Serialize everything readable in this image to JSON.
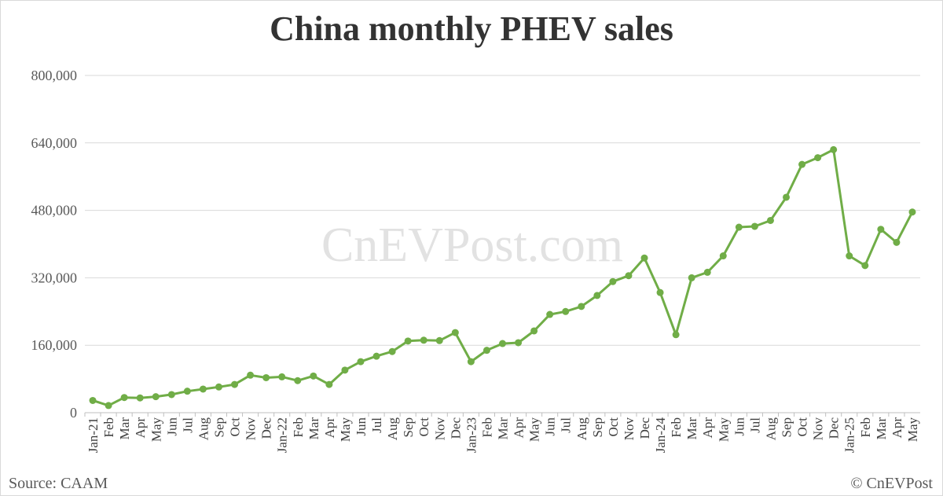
{
  "header": {
    "source": "Source: CAAM",
    "copyright": "© CnEVPost",
    "watermark": "CnEVPost.com"
  },
  "colors": {
    "line": "#70AD47",
    "grid": "#d9d9d9",
    "axis": "#bfbfbf",
    "text": "#595959"
  },
  "chart_data": {
    "type": "line",
    "title": "China monthly PHEV sales",
    "xlabel": "",
    "ylabel": "",
    "ylim": [
      0,
      800000
    ],
    "yticks": [
      "0",
      "160,000",
      "320,000",
      "480,000",
      "640,000",
      "800,000"
    ],
    "ytick_values": [
      0,
      160000,
      320000,
      480000,
      640000,
      800000
    ],
    "grid": true,
    "legend": "none",
    "categories": [
      "Jan-21",
      "Feb",
      "Mar",
      "Apr",
      "May",
      "Jun",
      "Jul",
      "Aug",
      "Sep",
      "Oct",
      "Nov",
      "Dec",
      "Jan-22",
      "Feb",
      "Mar",
      "Apr",
      "May",
      "Jun",
      "Jul",
      "Aug",
      "Sep",
      "Oct",
      "Nov",
      "Dec",
      "Jan-23",
      "Feb",
      "Mar",
      "Apr",
      "May",
      "Jun",
      "Jul",
      "Aug",
      "Sep",
      "Oct",
      "Nov",
      "Dec",
      "Jan-24",
      "Feb",
      "Mar",
      "Apr",
      "May",
      "Jun",
      "Jul",
      "Aug",
      "Sep",
      "Oct",
      "Nov",
      "Dec",
      "Jan-25",
      "Feb",
      "Mar",
      "Apr",
      "May"
    ],
    "series": [
      {
        "values": [
          29000,
          17000,
          36000,
          35000,
          38000,
          43000,
          51000,
          56000,
          61000,
          67000,
          89000,
          83000,
          85000,
          76000,
          87000,
          67000,
          101000,
          121000,
          134000,
          145000,
          170000,
          172000,
          171000,
          190000,
          121000,
          148000,
          164000,
          166000,
          194000,
          233000,
          240000,
          252000,
          278000,
          311000,
          325000,
          367000,
          285000,
          185000,
          320000,
          333000,
          372000,
          440000,
          442000,
          456000,
          511000,
          589000,
          605000,
          624000,
          372000,
          349000,
          435000,
          404000,
          476000
        ]
      }
    ]
  }
}
